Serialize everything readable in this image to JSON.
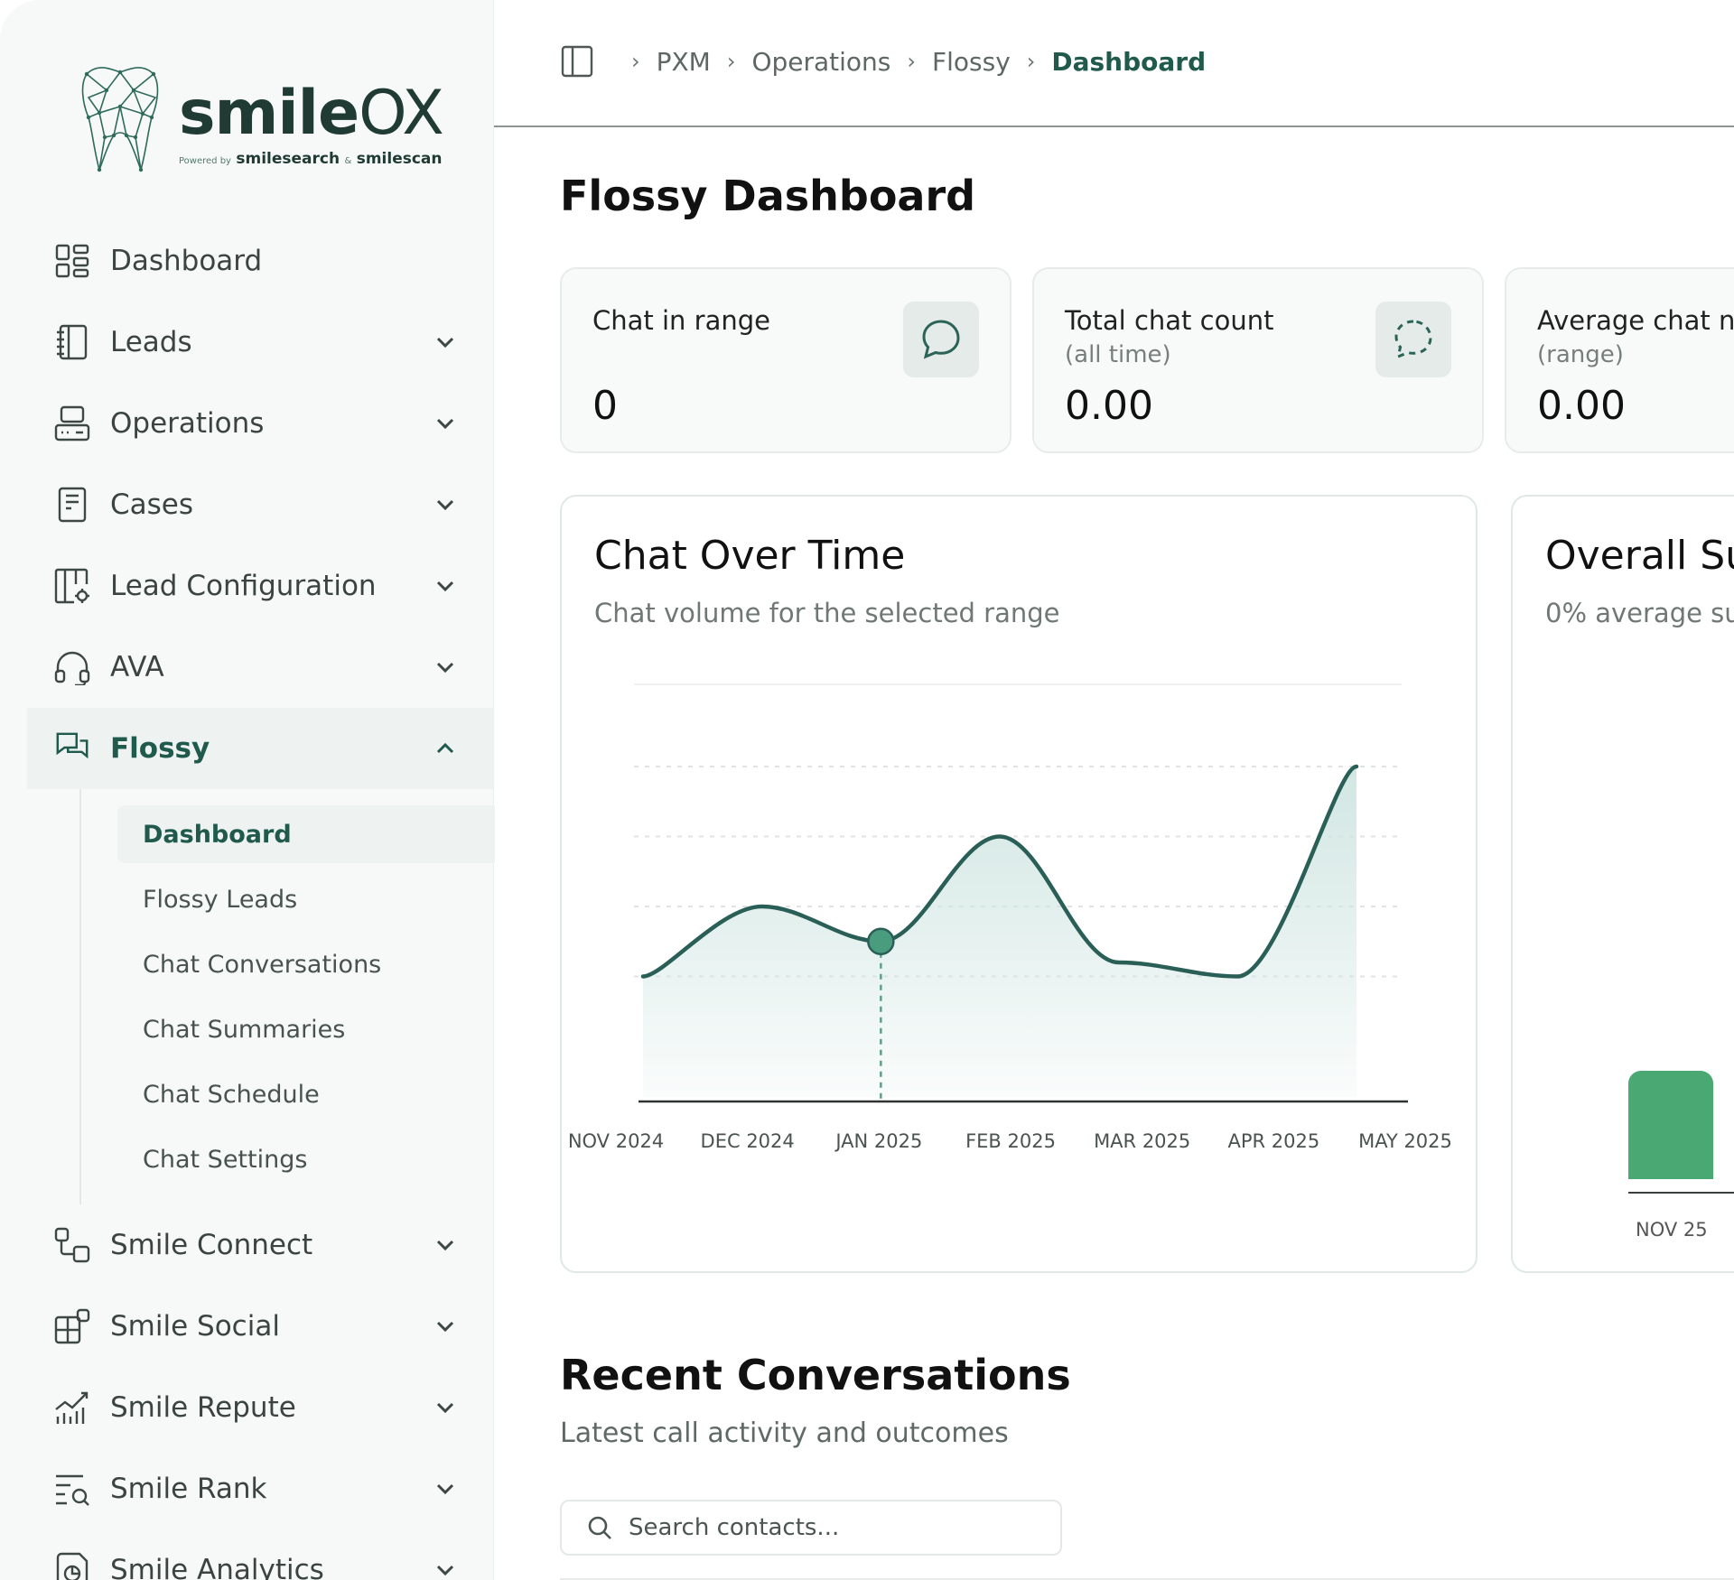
{
  "brand": {
    "name_bold": "smile",
    "name_light": "OX",
    "powered_prefix": "Powered by",
    "powered_a": "smilesearch",
    "powered_joiner": "&",
    "powered_b": "smilescan"
  },
  "sidebar": {
    "items": [
      {
        "label": "Dashboard",
        "icon": "dashboard-grid-icon",
        "has_chevron": false
      },
      {
        "label": "Leads",
        "icon": "notebook-icon",
        "has_chevron": true
      },
      {
        "label": "Operations",
        "icon": "server-icon",
        "has_chevron": true
      },
      {
        "label": "Cases",
        "icon": "document-icon",
        "has_chevron": true
      },
      {
        "label": "Lead Configuration",
        "icon": "config-panel-icon",
        "has_chevron": true
      },
      {
        "label": "AVA",
        "icon": "headset-icon",
        "has_chevron": true
      },
      {
        "label": "Flossy",
        "icon": "chat-bubbles-icon",
        "expanded": true
      },
      {
        "label": "Smile Connect",
        "icon": "connect-icon",
        "has_chevron": true
      },
      {
        "label": "Smile Social",
        "icon": "social-blocks-icon",
        "has_chevron": true
      },
      {
        "label": "Smile Repute",
        "icon": "growth-chart-icon",
        "has_chevron": true
      },
      {
        "label": "Smile Rank",
        "icon": "rank-search-icon",
        "has_chevron": true
      },
      {
        "label": "Smile Analytics",
        "icon": "analytics-icon",
        "has_chevron": true
      }
    ],
    "flossy_sub": [
      {
        "label": "Dashboard",
        "active": true
      },
      {
        "label": "Flossy Leads"
      },
      {
        "label": "Chat Conversations"
      },
      {
        "label": "Chat Summaries"
      },
      {
        "label": "Chat Schedule"
      },
      {
        "label": "Chat Settings"
      }
    ]
  },
  "breadcrumb": [
    "PXM",
    "Operations",
    "Flossy",
    "Dashboard"
  ],
  "page": {
    "title": "Flossy Dashboard"
  },
  "stats": [
    {
      "title": "Chat in range",
      "subtitle": "",
      "value": "0",
      "icon": "chat-bubble-icon"
    },
    {
      "title": "Total chat count",
      "subtitle": "(all time)",
      "value": "0.00",
      "icon": "dashed-chat-bubble-icon"
    },
    {
      "title": "Average chat n",
      "subtitle": "(range)",
      "value": "0.00"
    }
  ],
  "chat_over_time": {
    "title": "Chat Over Time",
    "subtitle": "Chat volume for the selected range"
  },
  "overall_summary": {
    "title": "Overall Su",
    "subtitle": "0% average su",
    "x_label": "NOV 25",
    "bar_color": "#4aa873"
  },
  "chart_data": {
    "type": "area",
    "title": "Chat Over Time",
    "subtitle": "Chat volume for the selected range",
    "categories": [
      "NOV 2024",
      "DEC 2024",
      "JAN 2025",
      "FEB 2025",
      "MAR 2025",
      "APR 2025",
      "MAY 2025"
    ],
    "values": [
      1,
      2,
      1.5,
      3,
      1.2,
      1,
      4
    ],
    "ylim": [
      0,
      4
    ],
    "grid": true,
    "highlighted_category": "JAN 2025",
    "line_color": "#2a5f57",
    "fill_color": "#cfe5e1",
    "marker_color": "#4a9c7e"
  },
  "recent": {
    "title": "Recent Conversations",
    "subtitle": "Latest call activity and outcomes",
    "search_placeholder": "Search contacts..."
  },
  "colors": {
    "accent": "#1f5a4d",
    "sidebar_bg": "#f6f9f8"
  }
}
